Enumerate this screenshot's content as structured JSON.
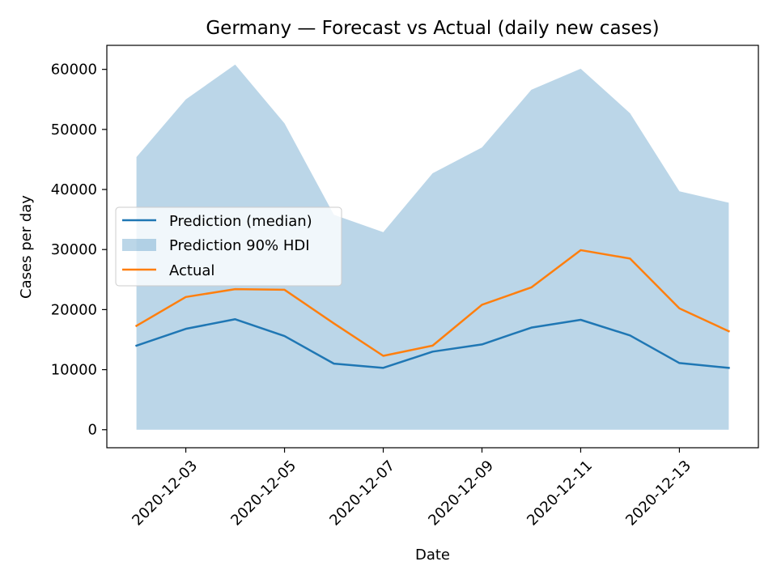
{
  "chart_data": {
    "type": "line",
    "title": "Germany — Forecast vs Actual (daily new cases)",
    "xlabel": "Date",
    "ylabel": "Cases per day",
    "x": [
      "2020-12-02",
      "2020-12-03",
      "2020-12-04",
      "2020-12-05",
      "2020-12-06",
      "2020-12-07",
      "2020-12-08",
      "2020-12-09",
      "2020-12-10",
      "2020-12-11",
      "2020-12-12",
      "2020-12-13",
      "2020-12-14"
    ],
    "x_tick_labels": [
      "2020-12-03",
      "2020-12-05",
      "2020-12-07",
      "2020-12-09",
      "2020-12-11",
      "2020-12-13"
    ],
    "y_ticks": [
      0,
      10000,
      20000,
      30000,
      40000,
      50000,
      60000
    ],
    "y_tick_labels": [
      "0",
      "10000",
      "20000",
      "30000",
      "40000",
      "50000",
      "60000"
    ],
    "ylim": [
      -3000,
      64000
    ],
    "xlim": [
      "2020-12-01T09:36",
      "2020-12-14T14:24"
    ],
    "grid": false,
    "legend_position": "center-left",
    "series": [
      {
        "name": "Prediction (median)",
        "kind": "line",
        "color": "#1f77b4",
        "values": [
          14000,
          16800,
          18400,
          15600,
          11000,
          10300,
          13000,
          14200,
          17000,
          18300,
          15700,
          11100,
          10300
        ]
      },
      {
        "name": "Prediction 90% HDI",
        "kind": "band",
        "color": "#1f77b4",
        "opacity": 0.3,
        "lower": [
          0,
          0,
          0,
          0,
          0,
          0,
          0,
          0,
          0,
          0,
          0,
          0,
          0
        ],
        "upper": [
          45400,
          55000,
          60800,
          51000,
          35800,
          32900,
          42700,
          47000,
          56600,
          60100,
          52700,
          39700,
          37800
        ]
      },
      {
        "name": "Actual",
        "kind": "line",
        "color": "#ff7f0e",
        "values": [
          17300,
          22100,
          23400,
          23300,
          17700,
          12300,
          14000,
          20800,
          23700,
          29900,
          28500,
          20200,
          16400
        ]
      }
    ]
  }
}
